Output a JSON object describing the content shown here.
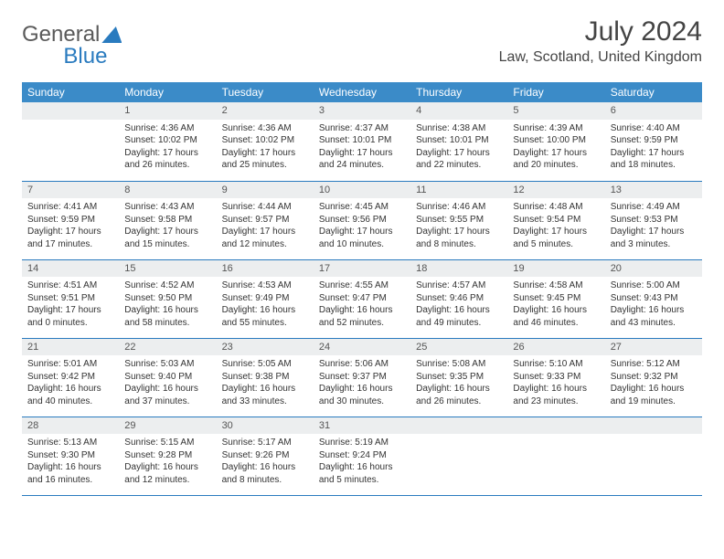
{
  "brand": {
    "word1": "General",
    "word2": "Blue"
  },
  "title": "July 2024",
  "location": "Law, Scotland, United Kingdom",
  "colors": {
    "header_bg": "#3b8bc8",
    "header_text": "#ffffff",
    "daynum_bg": "#eceeef",
    "row_border": "#2a7bbf",
    "body_text": "#333333",
    "brand_gray": "#5a5a5a",
    "brand_blue": "#2a7bbf",
    "page_bg": "#ffffff"
  },
  "fonts": {
    "title_size_pt": 22,
    "location_size_pt": 12,
    "header_size_pt": 9,
    "cell_size_pt": 7.5
  },
  "day_headers": [
    "Sunday",
    "Monday",
    "Tuesday",
    "Wednesday",
    "Thursday",
    "Friday",
    "Saturday"
  ],
  "weeks": [
    [
      null,
      {
        "n": "1",
        "sr": "Sunrise: 4:36 AM",
        "ss": "Sunset: 10:02 PM",
        "d1": "Daylight: 17 hours",
        "d2": "and 26 minutes."
      },
      {
        "n": "2",
        "sr": "Sunrise: 4:36 AM",
        "ss": "Sunset: 10:02 PM",
        "d1": "Daylight: 17 hours",
        "d2": "and 25 minutes."
      },
      {
        "n": "3",
        "sr": "Sunrise: 4:37 AM",
        "ss": "Sunset: 10:01 PM",
        "d1": "Daylight: 17 hours",
        "d2": "and 24 minutes."
      },
      {
        "n": "4",
        "sr": "Sunrise: 4:38 AM",
        "ss": "Sunset: 10:01 PM",
        "d1": "Daylight: 17 hours",
        "d2": "and 22 minutes."
      },
      {
        "n": "5",
        "sr": "Sunrise: 4:39 AM",
        "ss": "Sunset: 10:00 PM",
        "d1": "Daylight: 17 hours",
        "d2": "and 20 minutes."
      },
      {
        "n": "6",
        "sr": "Sunrise: 4:40 AM",
        "ss": "Sunset: 9:59 PM",
        "d1": "Daylight: 17 hours",
        "d2": "and 18 minutes."
      }
    ],
    [
      {
        "n": "7",
        "sr": "Sunrise: 4:41 AM",
        "ss": "Sunset: 9:59 PM",
        "d1": "Daylight: 17 hours",
        "d2": "and 17 minutes."
      },
      {
        "n": "8",
        "sr": "Sunrise: 4:43 AM",
        "ss": "Sunset: 9:58 PM",
        "d1": "Daylight: 17 hours",
        "d2": "and 15 minutes."
      },
      {
        "n": "9",
        "sr": "Sunrise: 4:44 AM",
        "ss": "Sunset: 9:57 PM",
        "d1": "Daylight: 17 hours",
        "d2": "and 12 minutes."
      },
      {
        "n": "10",
        "sr": "Sunrise: 4:45 AM",
        "ss": "Sunset: 9:56 PM",
        "d1": "Daylight: 17 hours",
        "d2": "and 10 minutes."
      },
      {
        "n": "11",
        "sr": "Sunrise: 4:46 AM",
        "ss": "Sunset: 9:55 PM",
        "d1": "Daylight: 17 hours",
        "d2": "and 8 minutes."
      },
      {
        "n": "12",
        "sr": "Sunrise: 4:48 AM",
        "ss": "Sunset: 9:54 PM",
        "d1": "Daylight: 17 hours",
        "d2": "and 5 minutes."
      },
      {
        "n": "13",
        "sr": "Sunrise: 4:49 AM",
        "ss": "Sunset: 9:53 PM",
        "d1": "Daylight: 17 hours",
        "d2": "and 3 minutes."
      }
    ],
    [
      {
        "n": "14",
        "sr": "Sunrise: 4:51 AM",
        "ss": "Sunset: 9:51 PM",
        "d1": "Daylight: 17 hours",
        "d2": "and 0 minutes."
      },
      {
        "n": "15",
        "sr": "Sunrise: 4:52 AM",
        "ss": "Sunset: 9:50 PM",
        "d1": "Daylight: 16 hours",
        "d2": "and 58 minutes."
      },
      {
        "n": "16",
        "sr": "Sunrise: 4:53 AM",
        "ss": "Sunset: 9:49 PM",
        "d1": "Daylight: 16 hours",
        "d2": "and 55 minutes."
      },
      {
        "n": "17",
        "sr": "Sunrise: 4:55 AM",
        "ss": "Sunset: 9:47 PM",
        "d1": "Daylight: 16 hours",
        "d2": "and 52 minutes."
      },
      {
        "n": "18",
        "sr": "Sunrise: 4:57 AM",
        "ss": "Sunset: 9:46 PM",
        "d1": "Daylight: 16 hours",
        "d2": "and 49 minutes."
      },
      {
        "n": "19",
        "sr": "Sunrise: 4:58 AM",
        "ss": "Sunset: 9:45 PM",
        "d1": "Daylight: 16 hours",
        "d2": "and 46 minutes."
      },
      {
        "n": "20",
        "sr": "Sunrise: 5:00 AM",
        "ss": "Sunset: 9:43 PM",
        "d1": "Daylight: 16 hours",
        "d2": "and 43 minutes."
      }
    ],
    [
      {
        "n": "21",
        "sr": "Sunrise: 5:01 AM",
        "ss": "Sunset: 9:42 PM",
        "d1": "Daylight: 16 hours",
        "d2": "and 40 minutes."
      },
      {
        "n": "22",
        "sr": "Sunrise: 5:03 AM",
        "ss": "Sunset: 9:40 PM",
        "d1": "Daylight: 16 hours",
        "d2": "and 37 minutes."
      },
      {
        "n": "23",
        "sr": "Sunrise: 5:05 AM",
        "ss": "Sunset: 9:38 PM",
        "d1": "Daylight: 16 hours",
        "d2": "and 33 minutes."
      },
      {
        "n": "24",
        "sr": "Sunrise: 5:06 AM",
        "ss": "Sunset: 9:37 PM",
        "d1": "Daylight: 16 hours",
        "d2": "and 30 minutes."
      },
      {
        "n": "25",
        "sr": "Sunrise: 5:08 AM",
        "ss": "Sunset: 9:35 PM",
        "d1": "Daylight: 16 hours",
        "d2": "and 26 minutes."
      },
      {
        "n": "26",
        "sr": "Sunrise: 5:10 AM",
        "ss": "Sunset: 9:33 PM",
        "d1": "Daylight: 16 hours",
        "d2": "and 23 minutes."
      },
      {
        "n": "27",
        "sr": "Sunrise: 5:12 AM",
        "ss": "Sunset: 9:32 PM",
        "d1": "Daylight: 16 hours",
        "d2": "and 19 minutes."
      }
    ],
    [
      {
        "n": "28",
        "sr": "Sunrise: 5:13 AM",
        "ss": "Sunset: 9:30 PM",
        "d1": "Daylight: 16 hours",
        "d2": "and 16 minutes."
      },
      {
        "n": "29",
        "sr": "Sunrise: 5:15 AM",
        "ss": "Sunset: 9:28 PM",
        "d1": "Daylight: 16 hours",
        "d2": "and 12 minutes."
      },
      {
        "n": "30",
        "sr": "Sunrise: 5:17 AM",
        "ss": "Sunset: 9:26 PM",
        "d1": "Daylight: 16 hours",
        "d2": "and 8 minutes."
      },
      {
        "n": "31",
        "sr": "Sunrise: 5:19 AM",
        "ss": "Sunset: 9:24 PM",
        "d1": "Daylight: 16 hours",
        "d2": "and 5 minutes."
      },
      null,
      null,
      null
    ]
  ]
}
